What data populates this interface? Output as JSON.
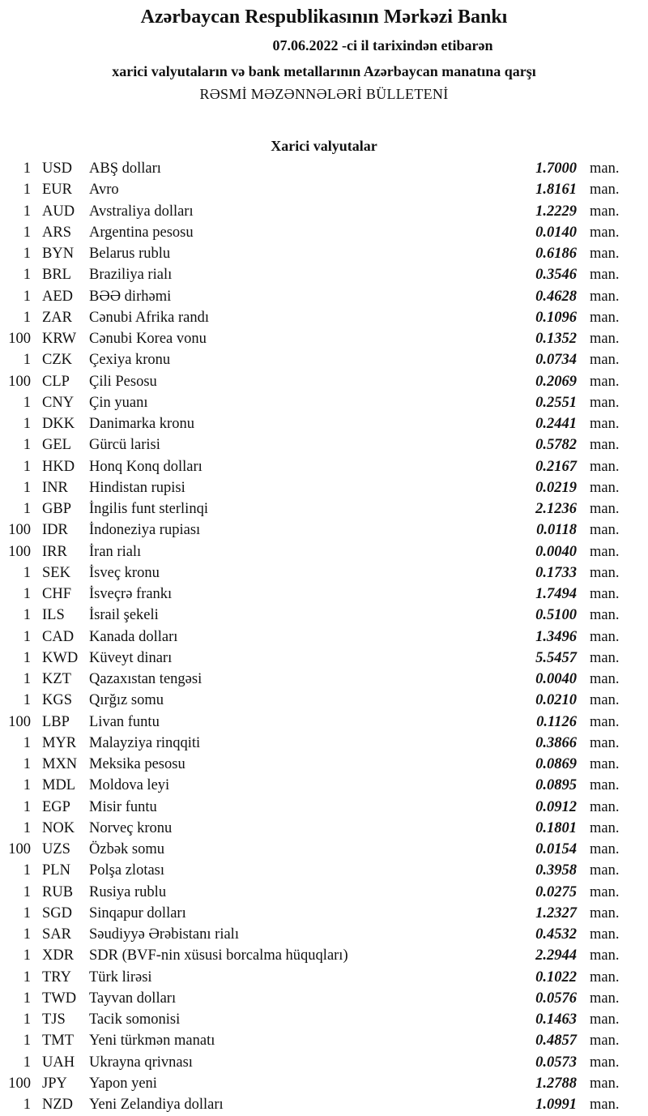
{
  "header": {
    "title": "Azərbaycan Respublikasının Mərkəzi Bankı",
    "date_line": "07.06.2022 -ci il tarixindən etibarən",
    "subtitle": "xarici valyutaların və bank metallarının Azərbaycan manatına qarşı",
    "bulletin": "RƏSMİ MƏZƏNNƏLƏRİ BÜLLETENİ"
  },
  "section_title": "Xarici valyutalar",
  "unit": "man.",
  "rates": [
    [
      "1",
      "USD",
      "ABŞ dolları",
      "1.7000"
    ],
    [
      "1",
      "EUR",
      "Avro",
      "1.8161"
    ],
    [
      "1",
      "AUD",
      "Avstraliya dolları",
      "1.2229"
    ],
    [
      "1",
      "ARS",
      "Argentina pesosu",
      "0.0140"
    ],
    [
      "1",
      "BYN",
      "Belarus rublu",
      "0.6186"
    ],
    [
      "1",
      "BRL",
      "Braziliya rialı",
      "0.3546"
    ],
    [
      "1",
      "AED",
      "BƏƏ dirhəmi",
      "0.4628"
    ],
    [
      "1",
      "ZAR",
      "Cənubi Afrika randı",
      "0.1096"
    ],
    [
      "100",
      "KRW",
      "Cənubi Korea vonu",
      "0.1352"
    ],
    [
      "1",
      "CZK",
      "Çexiya kronu",
      "0.0734"
    ],
    [
      "100",
      "CLP",
      "Çili Pesosu",
      "0.2069"
    ],
    [
      "1",
      "CNY",
      "Çin yuanı",
      "0.2551"
    ],
    [
      "1",
      "DKK",
      "Danimarka kronu",
      "0.2441"
    ],
    [
      "1",
      "GEL",
      "Gürcü larisi",
      "0.5782"
    ],
    [
      "1",
      "HKD",
      "Honq Konq dolları",
      "0.2167"
    ],
    [
      "1",
      "INR",
      "Hindistan rupisi",
      "0.0219"
    ],
    [
      "1",
      "GBP",
      "İngilis funt sterlinqi",
      "2.1236"
    ],
    [
      "100",
      "IDR",
      "İndoneziya rupiası",
      "0.0118"
    ],
    [
      "100",
      "IRR",
      "İran rialı",
      "0.0040"
    ],
    [
      "1",
      "SEK",
      "İsveç kronu",
      "0.1733"
    ],
    [
      "1",
      "CHF",
      "İsveçrə frankı",
      "1.7494"
    ],
    [
      "1",
      "ILS",
      "İsrail şekeli",
      "0.5100"
    ],
    [
      "1",
      "CAD",
      "Kanada dolları",
      "1.3496"
    ],
    [
      "1",
      "KWD",
      "Küveyt dinarı",
      "5.5457"
    ],
    [
      "1",
      "KZT",
      "Qazaxıstan tengəsi",
      "0.0040"
    ],
    [
      "1",
      "KGS",
      "Qırğız somu",
      "0.0210"
    ],
    [
      "100",
      "LBP",
      "Livan funtu",
      "0.1126"
    ],
    [
      "1",
      "MYR",
      "Malayziya rinqqiti",
      "0.3866"
    ],
    [
      "1",
      "MXN",
      "Meksika pesosu",
      "0.0869"
    ],
    [
      "1",
      "MDL",
      "Moldova leyi",
      "0.0895"
    ],
    [
      "1",
      "EGP",
      "Misir funtu",
      "0.0912"
    ],
    [
      "1",
      "NOK",
      "Norveç kronu",
      "0.1801"
    ],
    [
      "100",
      "UZS",
      "Özbək somu",
      "0.0154"
    ],
    [
      "1",
      "PLN",
      "Polşa zlotası",
      "0.3958"
    ],
    [
      "1",
      "RUB",
      "Rusiya rublu",
      "0.0275"
    ],
    [
      "1",
      "SGD",
      "Sinqapur dolları",
      "1.2327"
    ],
    [
      "1",
      "SAR",
      "Səudiyyə Ərəbistanı rialı",
      "0.4532"
    ],
    [
      "1",
      "XDR",
      "SDR (BVF-nin xüsusi borcalma hüquqları)",
      "2.2944"
    ],
    [
      "1",
      "TRY",
      "Türk lirəsi",
      "0.1022"
    ],
    [
      "1",
      "TWD",
      "Tayvan dolları",
      "0.0576"
    ],
    [
      "1",
      "TJS",
      "Tacik somonisi",
      "0.1463"
    ],
    [
      "1",
      "TMT",
      "Yeni türkmən manatı",
      "0.4857"
    ],
    [
      "1",
      "UAH",
      "Ukrayna qrivnası",
      "0.0573"
    ],
    [
      "100",
      "JPY",
      "Yapon yeni",
      "1.2788"
    ],
    [
      "1",
      "NZD",
      "Yeni Zelandiya dolları",
      "1.0991"
    ]
  ]
}
